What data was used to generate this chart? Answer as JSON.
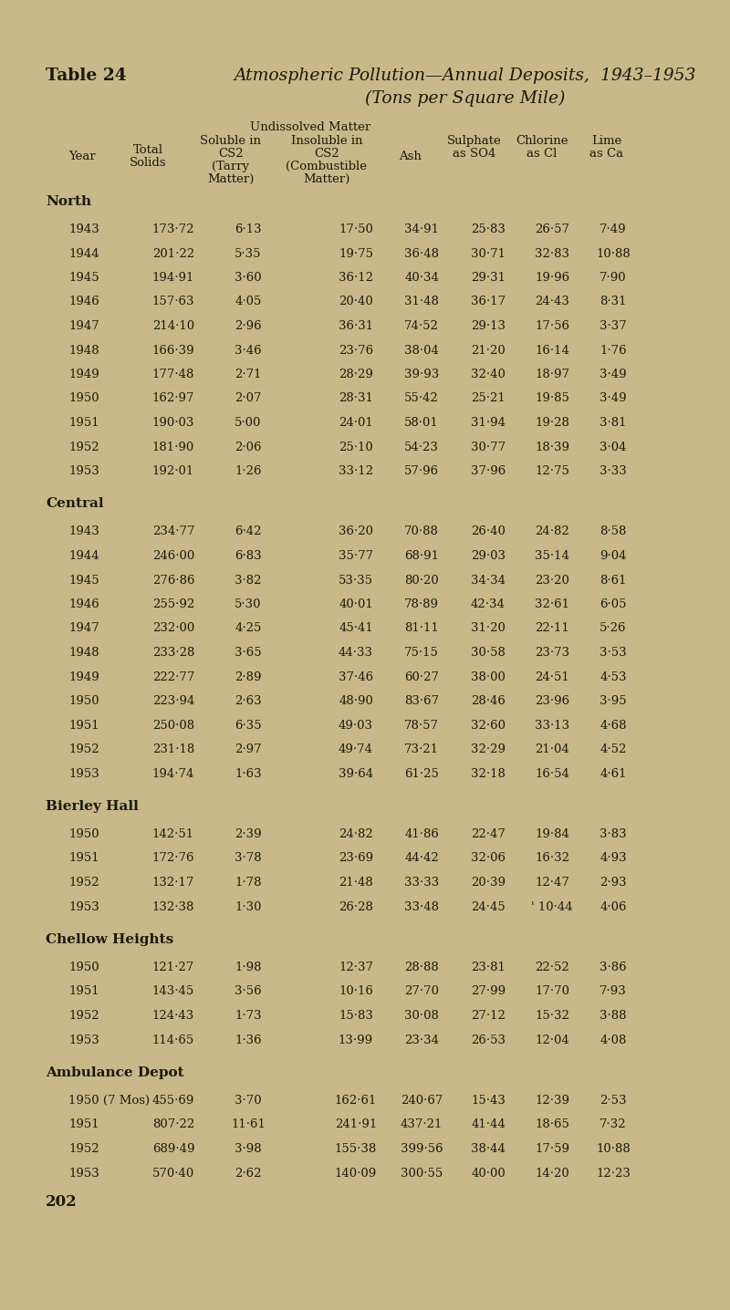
{
  "bg_color": "#c9b98a",
  "title_bold": "Table 24",
  "title_italic": "Atmospheric Pollution—Annual Deposits,  1943–1953",
  "title_italic2": "(Tons per Square Mile)",
  "header1": "Undissolved Matter",
  "sections": [
    {
      "name": "North",
      "rows": [
        [
          "1943",
          "173·72",
          "6·13",
          "17·50",
          "34·91",
          "25·83",
          "26·57",
          "7·49"
        ],
        [
          "1944",
          "201·22",
          "5·35",
          "19·75",
          "36·48",
          "30·71",
          "32·83",
          "10·88"
        ],
        [
          "1945",
          "194·91",
          "3·60",
          "36·12",
          "40·34",
          "29·31",
          "19·96",
          "7·90"
        ],
        [
          "1946",
          "157·63",
          "4·05",
          "20·40",
          "31·48",
          "36·17",
          "24·43",
          "8·31"
        ],
        [
          "1947",
          "214·10",
          "2·96",
          "36·31",
          "74·52",
          "29·13",
          "17·56",
          "3·37"
        ],
        [
          "1948",
          "166·39",
          "3·46",
          "23·76",
          "38·04",
          "21·20",
          "16·14",
          "1·76"
        ],
        [
          "1949",
          "177·48",
          "2·71",
          "28·29",
          "39·93",
          "32·40",
          "18·97",
          "3·49"
        ],
        [
          "1950",
          "162·97",
          "2·07",
          "28·31",
          "55·42",
          "25·21",
          "19·85",
          "3·49"
        ],
        [
          "1951",
          "190·03",
          "5·00",
          "24·01",
          "58·01",
          "31·94",
          "19·28",
          "3·81"
        ],
        [
          "1952",
          "181·90",
          "2·06",
          "25·10",
          "54·23",
          "30·77",
          "18·39",
          "3·04"
        ],
        [
          "1953",
          "192·01",
          "1·26",
          "33·12",
          "57·96",
          "37·96",
          "12·75",
          "3·33"
        ]
      ]
    },
    {
      "name": "Central",
      "rows": [
        [
          "1943",
          "234·77",
          "6·42",
          "36·20",
          "70·88",
          "26·40",
          "24·82",
          "8·58"
        ],
        [
          "1944",
          "246·00",
          "6·83",
          "35·77",
          "68·91",
          "29·03",
          "35·14",
          "9·04"
        ],
        [
          "1945",
          "276·86",
          "3·82",
          "53·35",
          "80·20",
          "34·34",
          "23·20",
          "8·61"
        ],
        [
          "1946",
          "255·92",
          "5·30",
          "40·01",
          "78·89",
          "42·34",
          "32·61",
          "6·05"
        ],
        [
          "1947",
          "232·00",
          "4·25",
          "45·41",
          "81·11",
          "31·20",
          "22·11",
          "5·26"
        ],
        [
          "1948",
          "233·28",
          "3·65",
          "44·33",
          "75·15",
          "30·58",
          "23·73",
          "3·53"
        ],
        [
          "1949",
          "222·77",
          "2·89",
          "37·46",
          "60·27",
          "38·00",
          "24·51",
          "4·53"
        ],
        [
          "1950",
          "223·94",
          "2·63",
          "48·90",
          "83·67",
          "28·46",
          "23·96",
          "3·95"
        ],
        [
          "1951",
          "250·08",
          "6·35",
          "49·03",
          "78·57",
          "32·60",
          "33·13",
          "4·68"
        ],
        [
          "1952",
          "231·18",
          "2·97",
          "49·74",
          "73·21",
          "32·29",
          "21·04",
          "4·52"
        ],
        [
          "1953",
          "194·74",
          "1·63",
          "39·64",
          "61·25",
          "32·18",
          "16·54",
          "4·61"
        ]
      ]
    },
    {
      "name": "Bierley Hall",
      "rows": [
        [
          "1950",
          "142·51",
          "2·39",
          "24·82",
          "41·86",
          "22·47",
          "19·84",
          "3·83"
        ],
        [
          "1951",
          "172·76",
          "3·78",
          "23·69",
          "44·42",
          "32·06",
          "16·32",
          "4·93"
        ],
        [
          "1952",
          "132·17",
          "1·78",
          "21·48",
          "33·33",
          "20·39",
          "12·47",
          "2·93"
        ],
        [
          "1953",
          "132·38",
          "1·30",
          "26·28",
          "33·48",
          "24·45",
          "' 10·44",
          "4·06"
        ]
      ]
    },
    {
      "name": "Chellow Heights",
      "rows": [
        [
          "1950",
          "121·27",
          "1·98",
          "12·37",
          "28·88",
          "23·81",
          "22·52",
          "3·86"
        ],
        [
          "1951",
          "143·45",
          "3·56",
          "10·16",
          "27·70",
          "27·99",
          "17·70",
          "7·93"
        ],
        [
          "1952",
          "124·43",
          "1·73",
          "15·83",
          "30·08",
          "27·12",
          "15·32",
          "3·88"
        ],
        [
          "1953",
          "114·65",
          "1·36",
          "13·99",
          "23·34",
          "26·53",
          "12·04",
          "4·08"
        ]
      ]
    },
    {
      "name": "Ambulance Depot",
      "rows": [
        [
          "1950 (7 Mos)",
          "455·69",
          "3·70",
          "162·61",
          "240·67",
          "15·43",
          "12·39",
          "2·53"
        ],
        [
          "1951",
          "807·22",
          "11·61",
          "241·91",
          "437·21",
          "41·44",
          "18·65",
          "7·32"
        ],
        [
          "1952",
          "689·49",
          "3·98",
          "155·38",
          "399·56",
          "38·44",
          "17·59",
          "10·88"
        ],
        [
          "1953",
          "570·40",
          "2·62",
          "140·09",
          "300·55",
          "40·00",
          "14·20",
          "12·23"
        ]
      ]
    }
  ],
  "footer": "202",
  "text_color": "#1a1808",
  "font_size_title_bold": 13.5,
  "font_size_title_italic": 13.5,
  "font_size_header": 9.5,
  "font_size_data": 9.5,
  "font_size_section": 11,
  "font_size_footer": 12
}
